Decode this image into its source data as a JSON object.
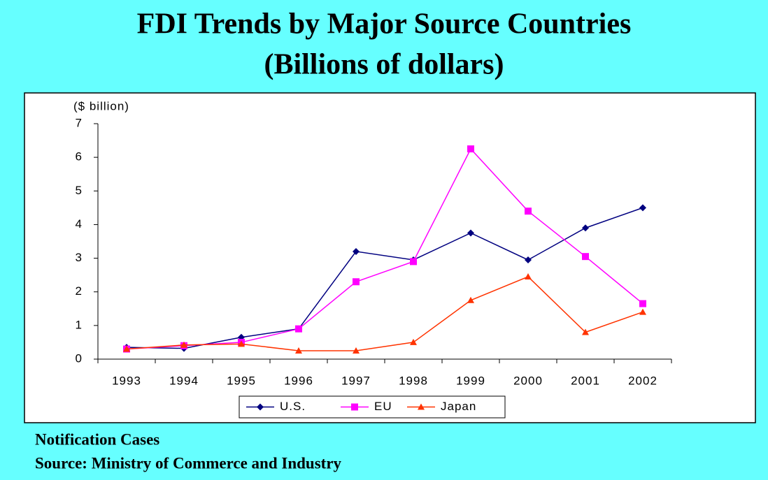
{
  "chart_data": {
    "type": "line",
    "title": [
      "FDI Trends by Major Source Countries",
      "(Billions of dollars)"
    ],
    "y_axis_label": "($ billion)",
    "categories": [
      "1993",
      "1994",
      "1995",
      "1996",
      "1997",
      "1998",
      "1999",
      "2000",
      "2001",
      "2002"
    ],
    "series": [
      {
        "name": "U.S.",
        "color": "#000080",
        "marker": "diamond",
        "values": [
          0.35,
          0.32,
          0.65,
          0.9,
          3.2,
          2.95,
          3.75,
          2.95,
          3.9,
          4.5
        ]
      },
      {
        "name": "EU",
        "color": "#ff00ff",
        "marker": "square",
        "values": [
          0.3,
          0.4,
          0.5,
          0.9,
          2.3,
          2.9,
          6.25,
          4.4,
          3.05,
          1.65
        ]
      },
      {
        "name": "Japan",
        "color": "#ff3300",
        "marker": "triangle",
        "values": [
          0.3,
          0.42,
          0.45,
          0.25,
          0.25,
          0.5,
          1.75,
          2.45,
          0.8,
          1.4
        ]
      }
    ],
    "ylim": [
      0,
      7
    ],
    "yticks": [
      0,
      1,
      2,
      3,
      4,
      5,
      6,
      7
    ],
    "grid": false,
    "legend": "bottom",
    "notes": [
      "Notification Cases",
      "Source: Ministry of Commerce and Industry"
    ]
  }
}
